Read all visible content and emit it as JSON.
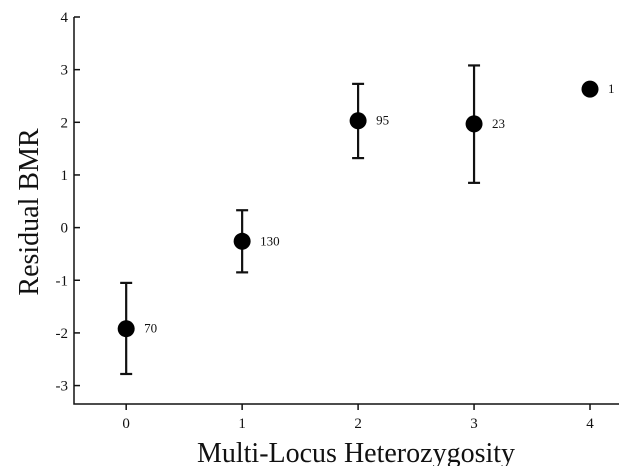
{
  "chart_data": {
    "type": "scatter",
    "xlabel": "Multi-Locus Heterozygosity",
    "ylabel": "Residual BMR",
    "xlim": [
      -0.45,
      4.25
    ],
    "ylim": [
      -3.35,
      4.0
    ],
    "x_ticks": [
      "0",
      "1",
      "2",
      "3",
      "4"
    ],
    "y_ticks": [
      "-3",
      "-2",
      "-1",
      "0",
      "1",
      "2",
      "3",
      "4"
    ],
    "grid": false,
    "points": [
      {
        "x": 0,
        "y": -1.92,
        "err_low": -2.78,
        "err_high": -1.05,
        "n": "70"
      },
      {
        "x": 1,
        "y": -0.26,
        "err_low": -0.85,
        "err_high": 0.33,
        "n": "130"
      },
      {
        "x": 2,
        "y": 2.03,
        "err_low": 1.32,
        "err_high": 2.73,
        "n": "95"
      },
      {
        "x": 3,
        "y": 1.97,
        "err_low": 0.85,
        "err_high": 3.08,
        "n": "23"
      },
      {
        "x": 4,
        "y": 2.63,
        "err_low": null,
        "err_high": null,
        "n": "1"
      }
    ]
  }
}
